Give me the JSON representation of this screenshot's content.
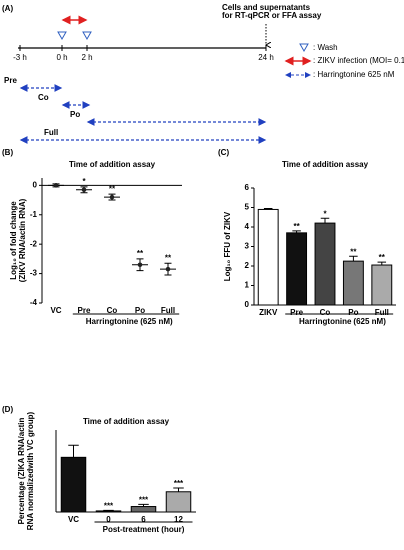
{
  "timeline": {
    "label": "(A)",
    "ticks": [
      "-3 h",
      "0 h",
      "2 h",
      "24 h"
    ],
    "note": [
      "Cells and supernatants",
      "for RT-qPCR or FFA assay"
    ],
    "legend": [
      ": Wash",
      ": ZIKV infection (MOI= 0.1)",
      ": Harringtonine 625 nM"
    ],
    "rows": [
      "Pre",
      "Co",
      "Po",
      "Full"
    ]
  },
  "chart_data": [
    {
      "type": "dot",
      "panel": "(B)",
      "title": "Time of addition assay",
      "ylabel": [
        "Log₁₀ of fold change",
        "(ZIKV RNA/actin RNA)"
      ],
      "categories": [
        "VC",
        "Pre",
        "Co",
        "Po",
        "Full"
      ],
      "values": [
        0,
        -0.15,
        -0.4,
        -2.7,
        -2.85
      ],
      "errors": [
        0.05,
        0.1,
        0.1,
        0.2,
        0.2
      ],
      "annotations": [
        null,
        "*",
        "**",
        "**",
        "**"
      ],
      "group_label": "Harringtonine",
      "group_unit": "(625 nM)",
      "ylim": [
        -4,
        0.25
      ],
      "yticks": [
        0,
        -1,
        -2,
        -3,
        -4
      ],
      "color": "#222222"
    },
    {
      "type": "bar",
      "panel": "(C)",
      "title": "Time of addition assay",
      "ylabel": [
        "Log₁₀ FFU of ZIKV"
      ],
      "categories": [
        "ZIKV",
        "Pre",
        "Co",
        "Po",
        "Full"
      ],
      "values": [
        4.9,
        3.7,
        4.2,
        2.25,
        2.05
      ],
      "errors": [
        0.05,
        0.1,
        0.25,
        0.25,
        0.15
      ],
      "annotations": [
        null,
        "**",
        "*",
        "**",
        "**"
      ],
      "colors": [
        "#ffffff",
        "#111111",
        "#444444",
        "#777777",
        "#aaaaaa"
      ],
      "group_label": "Harringtonine",
      "group_unit": "(625 nM)",
      "ylim": [
        0,
        6
      ],
      "yticks": [
        0,
        1,
        2,
        3,
        4,
        5,
        6
      ]
    },
    {
      "type": "bar",
      "panel": "(D)",
      "title": "Time of addition assay",
      "ylabel": [
        "Percentage (ZIKA RNA/actin",
        "RNA normalizedwith VC group)"
      ],
      "categories": [
        "VC",
        "0",
        "6",
        "12"
      ],
      "values": [
        100,
        2,
        10,
        37
      ],
      "errors": [
        22,
        1,
        4,
        7
      ],
      "annotations": [
        null,
        "***",
        "***",
        "***"
      ],
      "colors": [
        "#111111",
        "#333333",
        "#666666",
        "#aaaaaa"
      ],
      "group_label": "Post-treatment (hour)",
      "ylim": [
        0,
        150
      ]
    }
  ]
}
